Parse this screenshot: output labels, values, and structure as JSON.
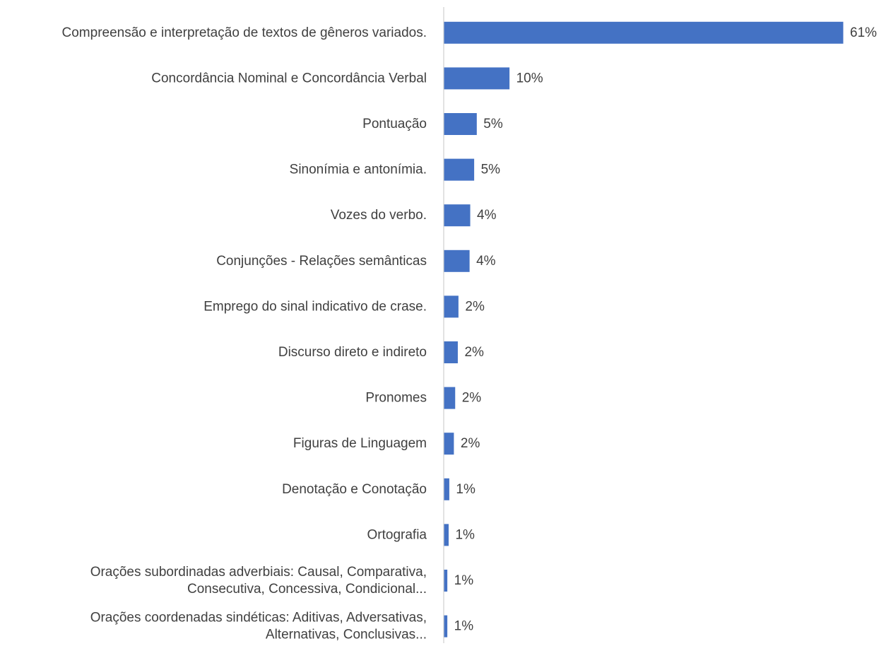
{
  "chart_data": {
    "type": "bar",
    "orientation": "horizontal",
    "title": "",
    "xlabel": "",
    "ylabel": "",
    "grid": false,
    "bar_color": "#4472C4",
    "axis_color": "#D9D9D9",
    "categories": [
      "Compreensão e interpretação de textos de gêneros variados.",
      "Concordância Nominal e Concordância Verbal",
      "Pontuação",
      "Sinonímia e antonímia.",
      "Vozes do verbo.",
      "Conjunções - Relações semânticas",
      "Emprego do sinal indicativo de crase.",
      "Discurso direto e indireto",
      "Pronomes",
      "Figuras de Linguagem",
      "Denotação e Conotação",
      "Ortografia",
      "Orações subordinadas adverbiais: Causal, Comparativa, Consecutiva, Concessiva, Condicional...",
      "Orações coordenadas sindéticas: Aditivas, Adversativas, Alternativas, Conclusivas..."
    ],
    "category_lines": [
      [
        "Compreensão e interpretação de textos de gêneros variados."
      ],
      [
        "Concordância Nominal e Concordância Verbal"
      ],
      [
        "Pontuação"
      ],
      [
        "Sinonímia e antonímia."
      ],
      [
        "Vozes do verbo."
      ],
      [
        "Conjunções - Relações semânticas"
      ],
      [
        "Emprego do sinal indicativo de crase."
      ],
      [
        "Discurso direto e indireto"
      ],
      [
        "Pronomes"
      ],
      [
        "Figuras de Linguagem"
      ],
      [
        "Denotação e Conotação"
      ],
      [
        "Ortografia"
      ],
      [
        "Orações subordinadas adverbiais: Causal, Comparativa,",
        "Consecutiva, Concessiva, Condicional..."
      ],
      [
        "Orações coordenadas sindéticas: Aditivas, Adversativas,",
        "Alternativas, Conclusivas..."
      ]
    ],
    "values": [
      61,
      10,
      5,
      4.6,
      4,
      3.9,
      2.2,
      2.1,
      1.7,
      1.5,
      0.8,
      0.7,
      0.5,
      0.5
    ],
    "data_labels": [
      "61%",
      "10%",
      "5%",
      "5%",
      "4%",
      "4%",
      "2%",
      "2%",
      "2%",
      "2%",
      "1%",
      "1%",
      "1%",
      "1%"
    ],
    "xlim": [
      0,
      61
    ]
  }
}
